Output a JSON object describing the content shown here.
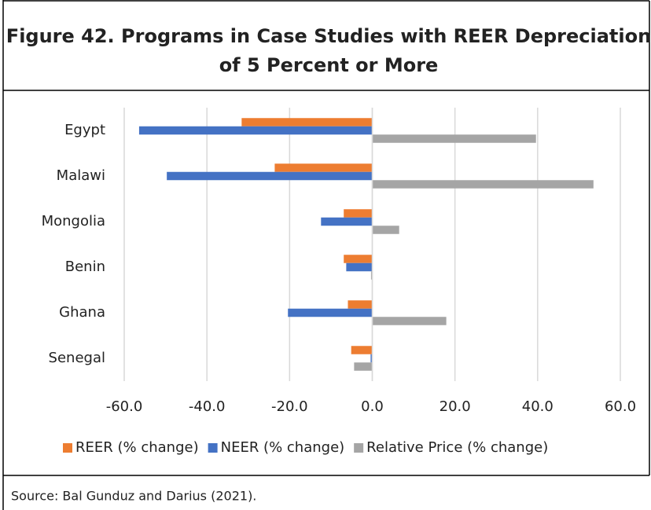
{
  "chart_data": {
    "type": "hbar",
    "title_lines": [
      "Figure 42. Programs in Case Studies with REER Depreciation",
      "of 5 Percent or More"
    ],
    "categories": [
      "Egypt",
      "Malawi",
      "Mongolia",
      "Benin",
      "Ghana",
      "Senegal"
    ],
    "series": [
      {
        "name": "REER (% change)",
        "color": "#ed7d31",
        "values": [
          -31.6,
          -23.6,
          -6.9,
          -6.9,
          -5.9,
          -5.1
        ]
      },
      {
        "name": "NEER (% change)",
        "color": "#4472c4",
        "values": [
          -56.4,
          -49.7,
          -12.4,
          -6.3,
          -20.4,
          -0.4
        ]
      },
      {
        "name": "Relative Price (% change)",
        "color": "#a5a5a5",
        "values": [
          39.6,
          53.5,
          6.5,
          -0.3,
          17.9,
          -4.4
        ]
      }
    ],
    "xlim": [
      -60,
      60
    ],
    "xticks": [
      {
        "value": -60,
        "label": "-60.0"
      },
      {
        "value": -40,
        "label": "-40.0"
      },
      {
        "value": -20,
        "label": "-20.0"
      },
      {
        "value": 0,
        "label": "0.0"
      },
      {
        "value": 20,
        "label": "20.0"
      },
      {
        "value": 40,
        "label": "40.0"
      },
      {
        "value": 60,
        "label": "60.0"
      }
    ],
    "grid": true,
    "source": "Source: Bal Gunduz and Darius (2021)."
  }
}
